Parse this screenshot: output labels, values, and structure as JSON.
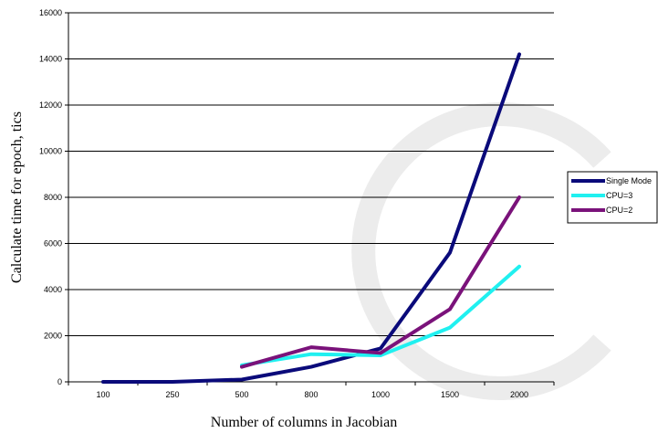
{
  "chart_data": {
    "type": "line",
    "title": "",
    "xlabel": "Number of columns in Jacobian",
    "ylabel": "Calculate time for epoch, tics",
    "categories": [
      "100",
      "250",
      "500",
      "800",
      "1000",
      "1500",
      "2000"
    ],
    "ylim": [
      0,
      16000
    ],
    "yticks": [
      "0",
      "2000",
      "4000",
      "6000",
      "8000",
      "10000",
      "12000",
      "14000",
      "16000"
    ],
    "grid": true,
    "legend_position": "right",
    "series": [
      {
        "name": "Single Mode",
        "color": "#0a0a7a",
        "x": [
          "100",
          "250",
          "500",
          "800",
          "1000",
          "1500",
          "2000"
        ],
        "values": [
          0,
          0,
          100,
          650,
          1450,
          5600,
          14200
        ]
      },
      {
        "name": "CPU=3",
        "color": "#20f0f0",
        "x": [
          "500",
          "800",
          "1000",
          "1500",
          "2000"
        ],
        "values": [
          720,
          1200,
          1150,
          2350,
          5000
        ]
      },
      {
        "name": "CPU=2",
        "color": "#7a127a",
        "x": [
          "500",
          "800",
          "1000",
          "1500",
          "2000"
        ],
        "values": [
          650,
          1500,
          1250,
          3150,
          8000
        ]
      }
    ]
  }
}
